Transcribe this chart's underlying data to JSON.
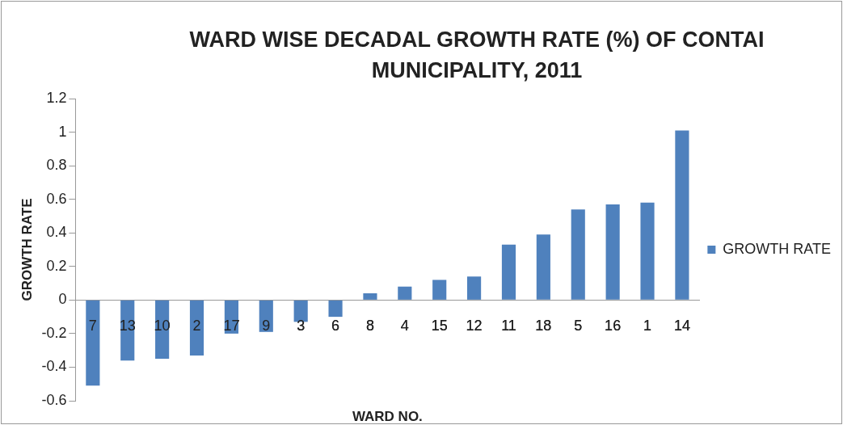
{
  "chart_data": {
    "type": "bar",
    "title": "WARD WISE DECADAL GROWTH RATE (%) OF CONTAI MUNICIPALITY, 2011",
    "xlabel": "WARD NO.",
    "ylabel": "GROWTH RATE",
    "categories": [
      "7",
      "13",
      "10",
      "2",
      "17",
      "9",
      "3",
      "6",
      "8",
      "4",
      "15",
      "12",
      "11",
      "18",
      "5",
      "16",
      "1",
      "14"
    ],
    "series": [
      {
        "name": "GROWTH RATE",
        "color": "#4f81bd",
        "values": [
          -0.51,
          -0.36,
          -0.35,
          -0.33,
          -0.2,
          -0.19,
          -0.13,
          -0.1,
          0.04,
          0.08,
          0.12,
          0.14,
          0.33,
          0.39,
          0.54,
          0.57,
          0.58,
          1.01
        ]
      }
    ],
    "ylim": [
      -0.6,
      1.2
    ],
    "yticks": [
      -0.6,
      -0.4,
      -0.2,
      0,
      0.2,
      0.4,
      0.6,
      0.8,
      1,
      1.2
    ],
    "grid": false,
    "legend": "right"
  }
}
